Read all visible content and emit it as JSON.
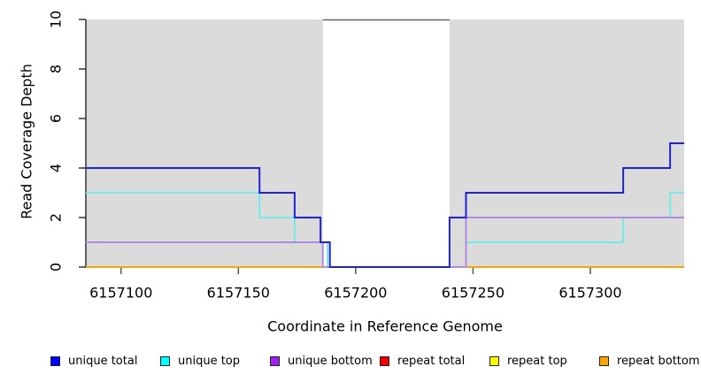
{
  "figure": {
    "background": "#FFFFFF",
    "shaded_region_color": "#DBDBDB",
    "axis_color": "#333333",
    "tick_color": "#555555",
    "gap_border_color": "#666666",
    "text_color": "#000000"
  },
  "chart_data": {
    "type": "line",
    "step_style": "post",
    "title": "",
    "xlabel": "Coordinate in Reference Genome",
    "ylabel": "Read Coverage Depth",
    "xlim": [
      6157085,
      6157340
    ],
    "ylim": [
      0,
      10
    ],
    "x_ticks": [
      6157100,
      6157150,
      6157200,
      6157250,
      6157300
    ],
    "y_ticks": [
      0,
      2,
      4,
      6,
      8,
      10
    ],
    "grid": false,
    "legend_position": "bottom",
    "shaded_regions": [
      {
        "from": 6157085,
        "to": 6157186
      },
      {
        "from": 6157240,
        "to": 6157340
      }
    ],
    "uncovered_gap": {
      "from": 6157186,
      "to": 6157240
    },
    "series": [
      {
        "name": "unique total",
        "swatch_color": "#0000FF",
        "line_color": "#2121D8",
        "steps": [
          [
            6157085,
            4
          ],
          [
            6157159,
            3
          ],
          [
            6157174,
            2
          ],
          [
            6157185,
            1
          ],
          [
            6157189,
            0
          ],
          [
            6157240,
            2
          ],
          [
            6157247,
            3
          ],
          [
            6157314,
            4
          ],
          [
            6157334,
            5
          ]
        ]
      },
      {
        "name": "unique top",
        "swatch_color": "#00FFFF",
        "line_color": "#76E9E9",
        "steps": [
          [
            6157085,
            3
          ],
          [
            6157159,
            2
          ],
          [
            6157174,
            1
          ],
          [
            6157188,
            0
          ],
          [
            6157247,
            1
          ],
          [
            6157314,
            2
          ],
          [
            6157334,
            3
          ]
        ]
      },
      {
        "name": "unique bottom",
        "swatch_color": "#A020F0",
        "line_color": "#B08CDE",
        "steps": [
          [
            6157085,
            1
          ],
          [
            6157186,
            0
          ],
          [
            6157247,
            2
          ]
        ]
      },
      {
        "name": "repeat total",
        "swatch_color": "#EE0000",
        "line_color": "#DD2222",
        "steps": [
          [
            6157085,
            0
          ]
        ]
      },
      {
        "name": "repeat top",
        "swatch_color": "#FFFF00",
        "line_color": "#EEEE00",
        "steps": [
          [
            6157085,
            0
          ]
        ]
      },
      {
        "name": "repeat bottom",
        "swatch_color": "#FFA500",
        "line_color": "#FFA500",
        "steps": [
          [
            6157085,
            0
          ]
        ]
      }
    ],
    "draw_order": [
      3,
      4,
      5,
      1,
      2,
      0
    ]
  }
}
